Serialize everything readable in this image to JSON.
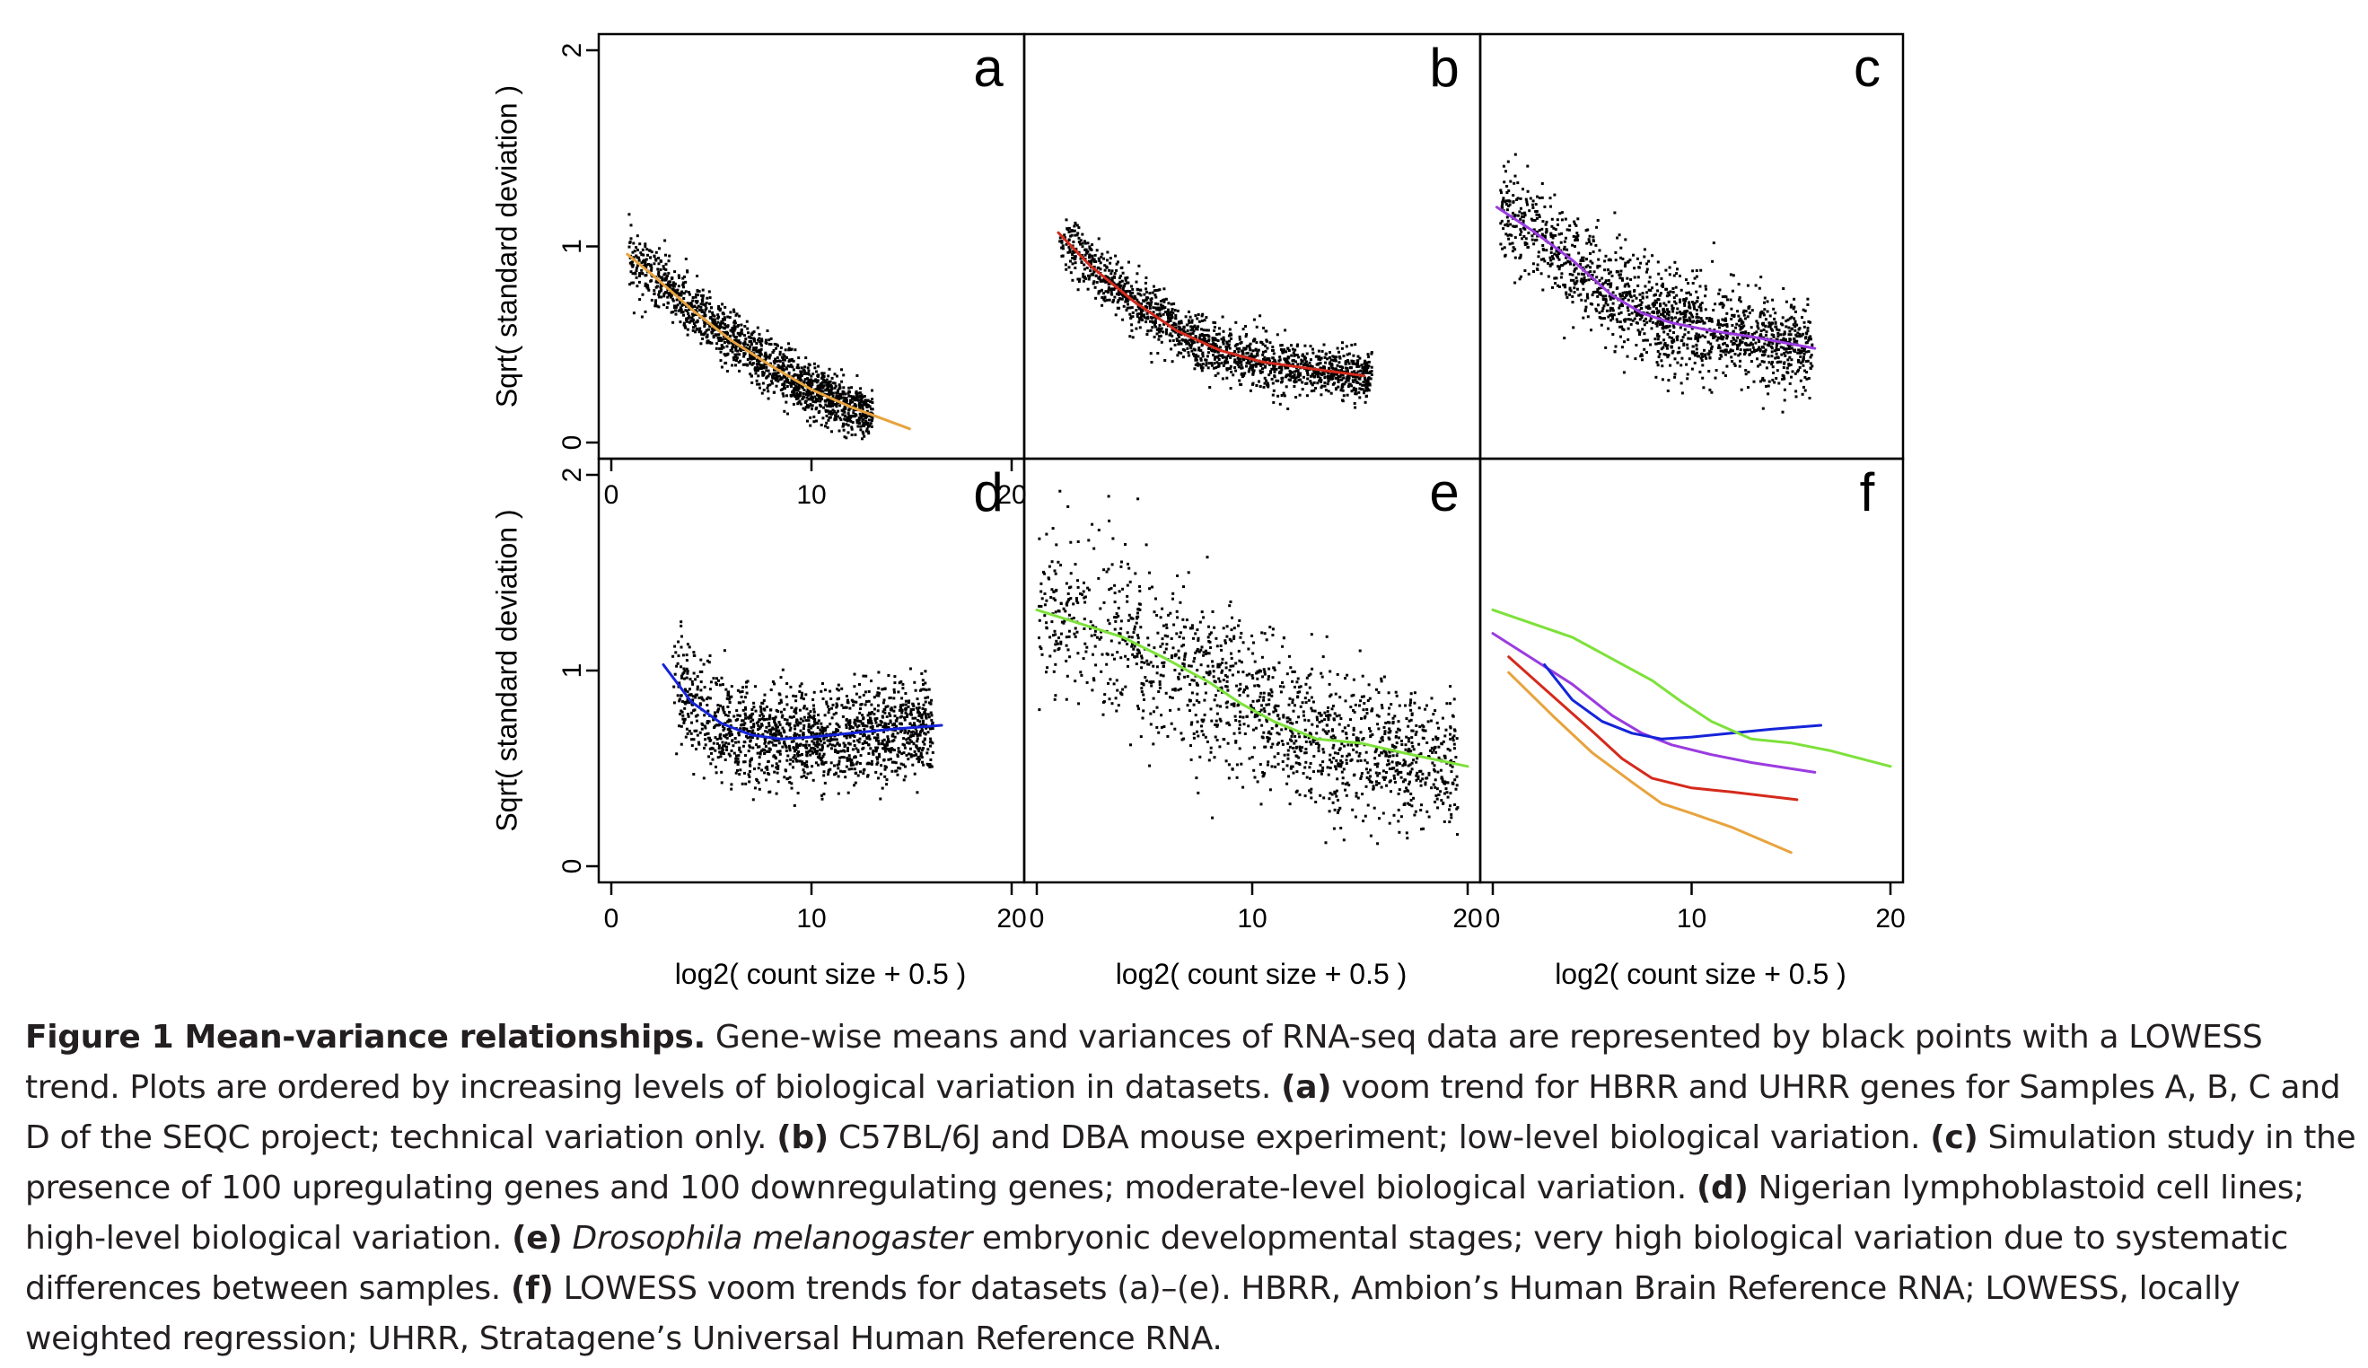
{
  "chart_data": [
    {
      "type": "scatter",
      "panel_label": "a",
      "xlabel": "",
      "ylabel": "Sqrt( standard deviation )",
      "xlim": [
        0,
        20
      ],
      "ylim": [
        0,
        2
      ],
      "x_ticks": [
        "0",
        "10",
        "20"
      ],
      "y_ticks": [
        "0",
        "1",
        "2"
      ],
      "trend_color": "#e8a33d",
      "trend": [
        [
          0.8,
          0.96
        ],
        [
          2,
          0.86
        ],
        [
          4,
          0.68
        ],
        [
          6,
          0.52
        ],
        [
          8,
          0.39
        ],
        [
          10,
          0.27
        ],
        [
          12,
          0.18
        ],
        [
          14.9,
          0.07
        ]
      ],
      "cloud": {
        "x_range": [
          0.8,
          13
        ],
        "sd_base": 0.06
      }
    },
    {
      "type": "scatter",
      "panel_label": "b",
      "xlabel": "",
      "ylabel": "",
      "xlim": [
        0,
        20
      ],
      "ylim": [
        0,
        2
      ],
      "x_ticks": [],
      "y_ticks": [],
      "trend_color": "#d42a1c",
      "trend": [
        [
          1,
          1.07
        ],
        [
          2.5,
          0.9
        ],
        [
          4.5,
          0.72
        ],
        [
          6.5,
          0.57
        ],
        [
          8.5,
          0.47
        ],
        [
          10.5,
          0.41
        ],
        [
          12.5,
          0.38
        ],
        [
          15.2,
          0.34
        ]
      ],
      "cloud": {
        "x_range": [
          1,
          15.5
        ],
        "sd_base": 0.06
      }
    },
    {
      "type": "scatter",
      "panel_label": "c",
      "xlabel": "",
      "ylabel": "",
      "xlim": [
        0,
        20
      ],
      "ylim": [
        0,
        2
      ],
      "x_ticks": [],
      "y_ticks": [],
      "trend_color": "#9b3be0",
      "trend": [
        [
          0.2,
          1.2
        ],
        [
          2,
          1.08
        ],
        [
          4,
          0.93
        ],
        [
          6,
          0.75
        ],
        [
          7.5,
          0.66
        ],
        [
          9,
          0.61
        ],
        [
          11,
          0.57
        ],
        [
          13,
          0.54
        ],
        [
          16.2,
          0.48
        ]
      ],
      "cloud": {
        "x_range": [
          0.3,
          16
        ],
        "sd_base": 0.11
      }
    },
    {
      "type": "scatter",
      "panel_label": "d",
      "xlabel": "log2( count size + 0.5 )",
      "ylabel": "Sqrt( standard deviation )",
      "xlim": [
        0,
        20
      ],
      "ylim": [
        0,
        2
      ],
      "x_ticks": [
        "0",
        "10",
        "20"
      ],
      "y_ticks": [
        "0",
        "1",
        "2"
      ],
      "trend_color": "#1524d9",
      "trend": [
        [
          2.6,
          1.03
        ],
        [
          4,
          0.84
        ],
        [
          5.5,
          0.73
        ],
        [
          7,
          0.67
        ],
        [
          8.5,
          0.65
        ],
        [
          10,
          0.66
        ],
        [
          12,
          0.68
        ],
        [
          14,
          0.7
        ],
        [
          16.5,
          0.72
        ]
      ],
      "cloud": {
        "x_range": [
          3,
          16
        ],
        "sd_base": 0.11
      }
    },
    {
      "type": "scatter",
      "panel_label": "e",
      "xlabel": "log2( count size + 0.5 )",
      "ylabel": "",
      "xlim": [
        0,
        20
      ],
      "ylim": [
        0,
        2
      ],
      "x_ticks": [
        "0",
        "10",
        "20"
      ],
      "y_ticks": [],
      "trend_color": "#7de13a",
      "trend": [
        [
          0,
          1.31
        ],
        [
          2,
          1.24
        ],
        [
          4,
          1.17
        ],
        [
          6,
          1.06
        ],
        [
          8,
          0.94
        ],
        [
          9.5,
          0.83
        ],
        [
          11,
          0.74
        ],
        [
          13,
          0.65
        ],
        [
          15,
          0.63
        ],
        [
          17,
          0.58
        ],
        [
          20,
          0.51
        ]
      ],
      "cloud": {
        "x_range": [
          0,
          19.5
        ],
        "sd_base": 0.17
      }
    },
    {
      "type": "line",
      "panel_label": "f",
      "xlabel": "log2( count size + 0.5 )",
      "ylabel": "",
      "xlim": [
        0,
        20
      ],
      "ylim": [
        0,
        2
      ],
      "x_ticks": [
        "0",
        "10",
        "20"
      ],
      "y_ticks": [],
      "series": [
        {
          "color": "#e8a33d",
          "values": [
            [
              0.8,
              0.99
            ],
            [
              3,
              0.77
            ],
            [
              5,
              0.58
            ],
            [
              7,
              0.43
            ],
            [
              8.5,
              0.32
            ],
            [
              10,
              0.27
            ],
            [
              12,
              0.2
            ],
            [
              15,
              0.07
            ]
          ]
        },
        {
          "color": "#d42a1c",
          "values": [
            [
              0.8,
              1.07
            ],
            [
              3,
              0.87
            ],
            [
              5,
              0.69
            ],
            [
              6.5,
              0.55
            ],
            [
              8,
              0.45
            ],
            [
              10,
              0.4
            ],
            [
              12,
              0.38
            ],
            [
              15.3,
              0.34
            ]
          ]
        },
        {
          "color": "#9b3be0",
          "values": [
            [
              0,
              1.19
            ],
            [
              2,
              1.06
            ],
            [
              4,
              0.93
            ],
            [
              6,
              0.77
            ],
            [
              7.5,
              0.68
            ],
            [
              9,
              0.62
            ],
            [
              11,
              0.57
            ],
            [
              13,
              0.53
            ],
            [
              16.2,
              0.48
            ]
          ]
        },
        {
          "color": "#1524d9",
          "values": [
            [
              2.6,
              1.03
            ],
            [
              4,
              0.85
            ],
            [
              5.5,
              0.74
            ],
            [
              7,
              0.68
            ],
            [
              8.5,
              0.65
            ],
            [
              10,
              0.66
            ],
            [
              12,
              0.68
            ],
            [
              14,
              0.7
            ],
            [
              16.5,
              0.72
            ]
          ]
        },
        {
          "color": "#7de13a",
          "values": [
            [
              0,
              1.31
            ],
            [
              2,
              1.24
            ],
            [
              4,
              1.17
            ],
            [
              6,
              1.06
            ],
            [
              8,
              0.95
            ],
            [
              9.5,
              0.84
            ],
            [
              11,
              0.74
            ],
            [
              13,
              0.65
            ],
            [
              15,
              0.63
            ],
            [
              17,
              0.59
            ],
            [
              20,
              0.51
            ]
          ]
        }
      ]
    }
  ],
  "caption": {
    "figure_label": "Figure 1 Mean-variance relationships.",
    "intro": " Gene-wise means and variances of RNA-seq data are represented by black points with a LOWESS trend. Plots are ordered by increasing levels of biological variation in datasets. ",
    "items": [
      {
        "label": "(a)",
        "text": " voom trend for HBRR and UHRR genes for Samples A, B, C and D of the SEQC project; technical variation only. "
      },
      {
        "label": "(b)",
        "text": " C57BL/6J and DBA mouse experiment; low-level biological variation. "
      },
      {
        "label": "(c)",
        "text": " Simulation study in the presence of 100 upregulating genes and 100 downregulating genes; moderate-level biological variation. "
      },
      {
        "label": "(d)",
        "text": " Nigerian lymphoblastoid cell lines; high-level biological variation. "
      },
      {
        "label": "(e)",
        "text_italic": "Drosophila melanogaster",
        "text": " embryonic developmental stages; very high biological variation due to systematic differences between samples. "
      },
      {
        "label": "(f)",
        "text": " LOWESS voom trends for datasets (a)–(e). HBRR, Ambion’s Human Brain Reference RNA; LOWESS, locally weighted regression; UHRR, Stratagene’s Universal Human Reference RNA."
      }
    ]
  }
}
